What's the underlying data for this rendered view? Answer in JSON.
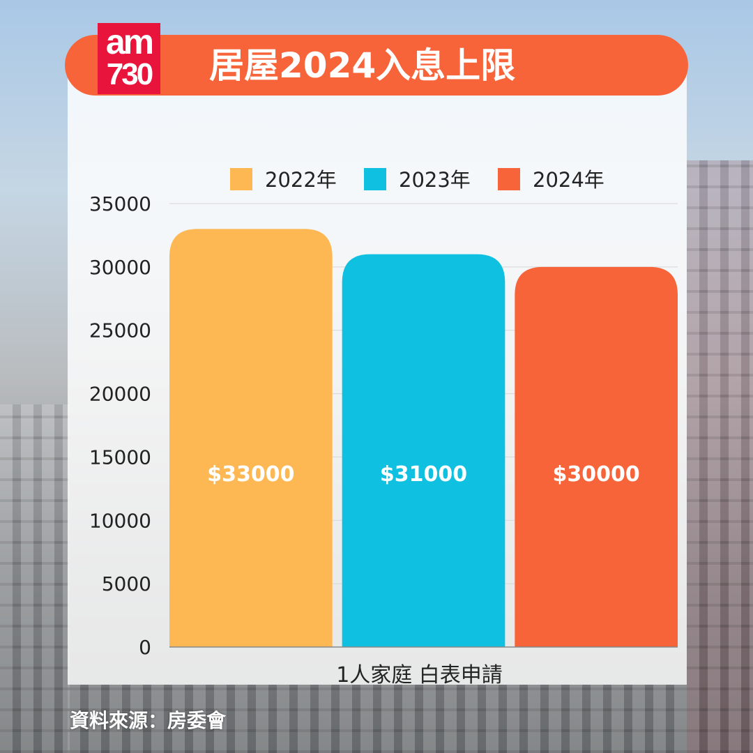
{
  "logo": {
    "line1": "am",
    "line2": "730"
  },
  "title": "居屋2024入息上限",
  "source": "資料來源：房委會",
  "chart_data": {
    "type": "bar",
    "title": "居屋2024入息上限",
    "categories": [
      "1人家庭 白表申請"
    ],
    "xlabel": "1人家庭 白表申請",
    "ylabel": "",
    "ylim": [
      0,
      35000
    ],
    "yticks": [
      0,
      5000,
      10000,
      15000,
      20000,
      25000,
      30000,
      35000
    ],
    "grid": true,
    "legend_position": "top",
    "series": [
      {
        "name": "2022年",
        "values": [
          33000
        ],
        "label": "$33000",
        "color": "#fdb854"
      },
      {
        "name": "2023年",
        "values": [
          31000
        ],
        "label": "$31000",
        "color": "#0fc0e0"
      },
      {
        "name": "2024年",
        "values": [
          30000
        ],
        "label": "$30000",
        "color": "#f7643a"
      }
    ]
  }
}
